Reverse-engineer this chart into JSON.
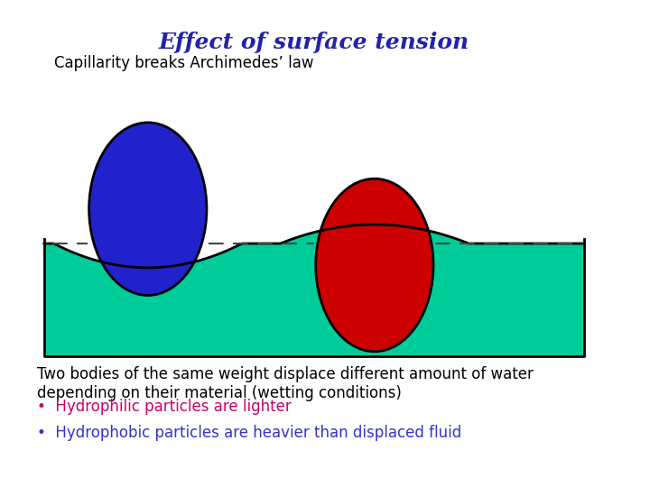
{
  "title": "Effect of surface tension",
  "title_color": "#2222aa",
  "title_fontsize": 18,
  "subtitle": "Capillarity breaks Archimedes’ law",
  "subtitle_fontsize": 12,
  "body_text": "Two bodies of the same weight displace different amount of water\ndepending on their material (wetting conditions)",
  "body_fontsize": 12,
  "bullet1_text": "Hydrophilic particles are lighter",
  "bullet1_color": "#cc0066",
  "bullet2_text": "Hydrophobic particles are heavier than displaced fluid",
  "bullet2_color": "#3333cc",
  "bullet_fontsize": 12,
  "water_color": "#00cc99",
  "water_outline": "#000000",
  "bg_color": "#ffffff",
  "blue_ball_color": "#2222cc",
  "blue_ball_outline": "#000000",
  "red_ball_color": "#cc0000",
  "red_ball_outline": "#000000",
  "dashed_color": "#444444"
}
